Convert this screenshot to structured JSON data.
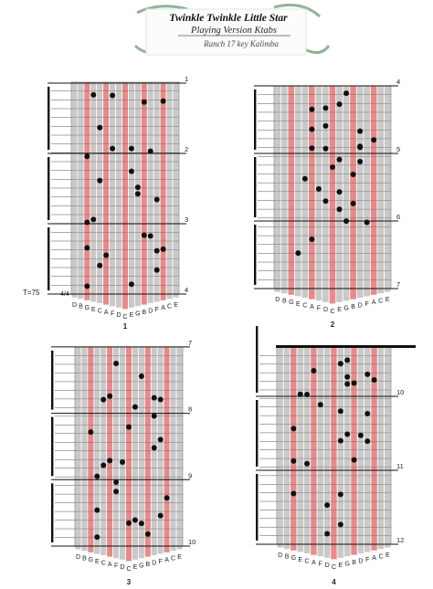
{
  "header": {
    "title": "Twinkle Twinkle Little Star",
    "subtitle": "Playing Version Ktabs",
    "instrument": "Ranch 17 key Kalimba"
  },
  "tempo": "T=75",
  "time_signature": "4/4",
  "tines": [
    "D",
    "B",
    "G",
    "E",
    "C",
    "A",
    "F",
    "D",
    "C",
    "E",
    "G",
    "B",
    "D",
    "F",
    "A",
    "C",
    "E"
  ],
  "panels": [
    {
      "number": "1",
      "measures": [
        "4",
        "3",
        "2",
        "1"
      ]
    },
    {
      "number": "2",
      "measures": [
        "7",
        "6",
        "5",
        "4"
      ]
    },
    {
      "number": "3",
      "measures": [
        "10",
        "9",
        "8",
        "7"
      ]
    },
    {
      "number": "4",
      "measures": [
        "12",
        "11",
        "10"
      ]
    }
  ]
}
